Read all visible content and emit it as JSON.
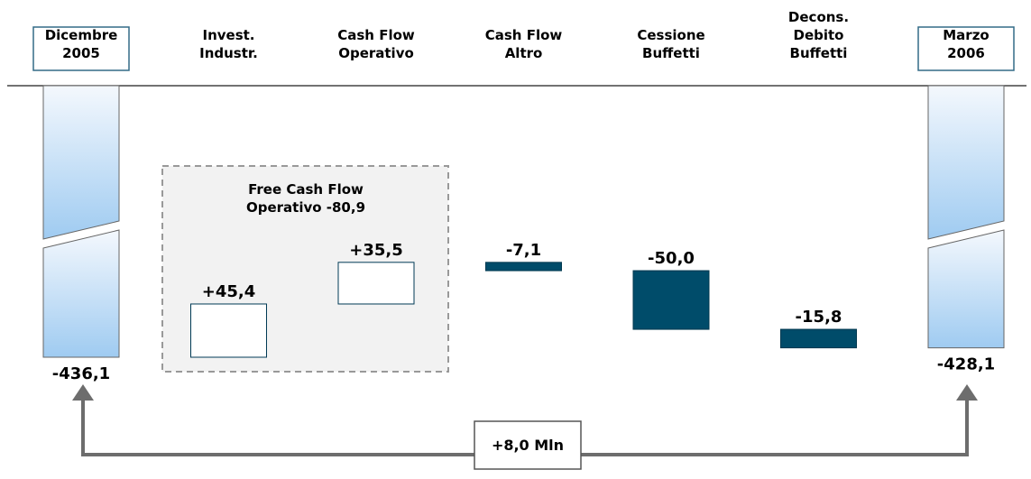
{
  "chart_data": {
    "type": "waterfall",
    "categories": [
      "Dicembre\n2005",
      "Invest.\nIndustr.",
      "Cash Flow\nOperativo",
      "Cash Flow\nAltro",
      "Cessione\nBuffetti",
      "Decons.\nDebito\nBuffetti",
      "Marzo\n2006"
    ],
    "values": [
      -436.1,
      45.4,
      35.5,
      -7.1,
      -50.0,
      -15.8,
      -428.1
    ],
    "value_labels": [
      "-436,1",
      "+45,4",
      "+35,5",
      "-7,1",
      "-50,0",
      "-15,8",
      "-428,1"
    ],
    "colors": {
      "total": "#9fcbf1",
      "increase": "#ffffff",
      "decrease": "#004c6a"
    },
    "annotations": [
      {
        "text": "Free Cash Flow\nOperativo -80,9"
      },
      {
        "text": "+8,0 Mln"
      }
    ]
  }
}
